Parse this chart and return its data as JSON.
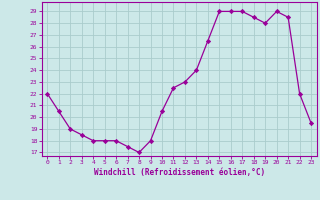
{
  "x": [
    0,
    1,
    2,
    3,
    4,
    5,
    6,
    7,
    8,
    9,
    10,
    11,
    12,
    13,
    14,
    15,
    16,
    17,
    18,
    19,
    20,
    21,
    22,
    23
  ],
  "y": [
    22,
    20.5,
    19,
    18.5,
    18,
    18,
    18,
    17.5,
    17,
    18,
    20.5,
    22.5,
    23,
    24,
    26.5,
    29,
    29,
    29,
    28.5,
    28,
    29,
    28.5,
    22,
    19.5
  ],
  "xlabel": "Windchill (Refroidissement éolien,°C)",
  "xlim": [
    -0.5,
    23.5
  ],
  "ylim": [
    16.7,
    29.8
  ],
  "yticks": [
    17,
    18,
    19,
    20,
    21,
    22,
    23,
    24,
    25,
    26,
    27,
    28,
    29
  ],
  "xticks": [
    0,
    1,
    2,
    3,
    4,
    5,
    6,
    7,
    8,
    9,
    10,
    11,
    12,
    13,
    14,
    15,
    16,
    17,
    18,
    19,
    20,
    21,
    22,
    23
  ],
  "line_color": "#990099",
  "marker": "D",
  "marker_size": 2.2,
  "bg_color": "#cce8e8",
  "grid_color": "#aacccc",
  "tick_label_color": "#990099",
  "axis_label_color": "#990099",
  "font_family": "monospace"
}
